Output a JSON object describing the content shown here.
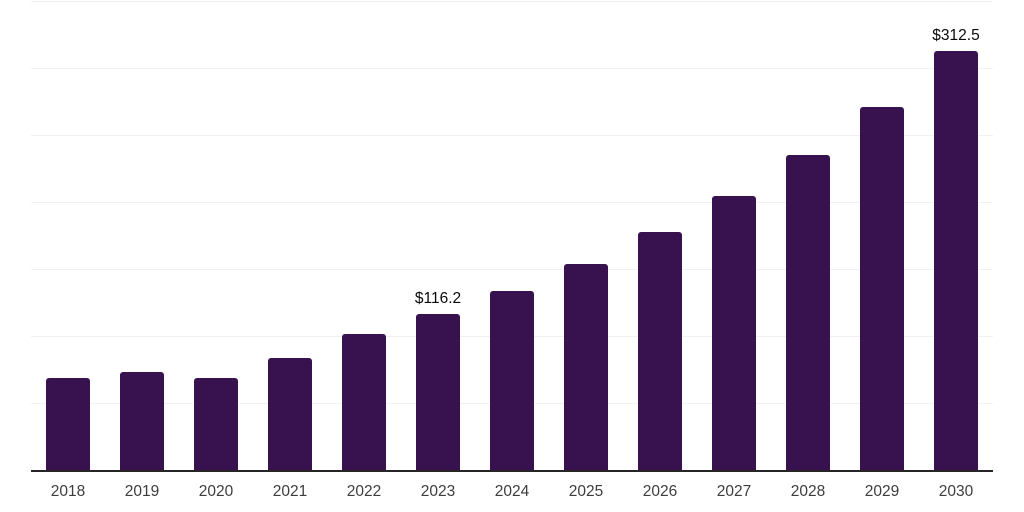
{
  "chart_data": {
    "type": "bar",
    "title": "",
    "xlabel": "",
    "ylabel": "",
    "categories": [
      "2018",
      "2019",
      "2020",
      "2021",
      "2022",
      "2023",
      "2024",
      "2025",
      "2026",
      "2027",
      "2028",
      "2029",
      "2030"
    ],
    "values": [
      68.7,
      73.2,
      69.0,
      83.4,
      101.3,
      116.2,
      133.8,
      154.1,
      177.5,
      204.4,
      235.4,
      271.2,
      312.5
    ],
    "data_labels": {
      "2023": "$116.2",
      "2030": "$312.5"
    },
    "ylim": [
      0,
      350
    ],
    "gridline_step": 50,
    "grid": true,
    "legend": false,
    "colors": {
      "bar": "#38114F",
      "axis_line": "#262626",
      "gridline": "#f1f1f1",
      "value_label": "#0a0a0a",
      "tick_label": "#3d3d3d",
      "background": "#ffffff"
    }
  }
}
